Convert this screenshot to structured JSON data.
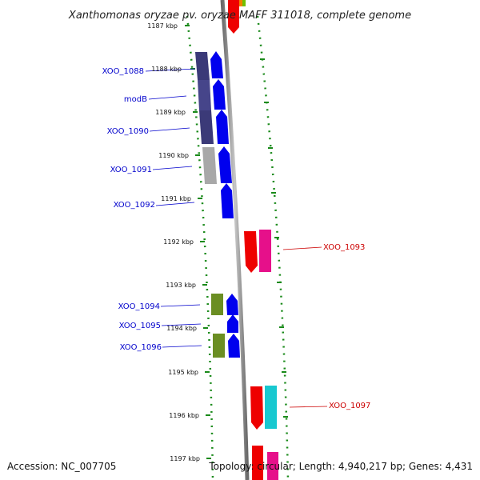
{
  "title": "Xanthomonas oryzae pv. oryzae MAFF 311018, complete genome",
  "footer": {
    "accession": "Accession: NC_007705",
    "topology": "Topology: circular; Length: 4,940,217 bp; Genes: 4,431"
  },
  "ticks": [
    "1187 kbp",
    "1188 kbp",
    "1189 kbp",
    "1190 kbp",
    "1191 kbp",
    "1192 kbp",
    "1193 kbp",
    "1194 kbp",
    "1195 kbp",
    "1196 kbp",
    "1197 kbp"
  ],
  "gene_labels": {
    "XOO_1088": "XOO_1088",
    "modB": "modB",
    "XOO_1090": "XOO_1090",
    "XOO_1091": "XOO_1091",
    "XOO_1092": "XOO_1092",
    "XOO_1093": "XOO_1093",
    "XOO_1094": "XOO_1094",
    "XOO_1095": "XOO_1095",
    "XOO_1096": "XOO_1096",
    "XOO_1097": "XOO_1097"
  },
  "colors": {
    "forward_strand": "#0000ee",
    "reverse_strand": "#ee0000",
    "left_label": "#0000cc",
    "right_label": "#cc0000",
    "cog_purple": "#3b3a78",
    "cog_gray": "#a8a8a8",
    "cog_olive": "#6b8e23",
    "cog_magenta": "#e6108a",
    "cog_cyan": "#18c8d0",
    "track_dots": "#1a8a1a",
    "backbone": "#8a8a8a"
  }
}
